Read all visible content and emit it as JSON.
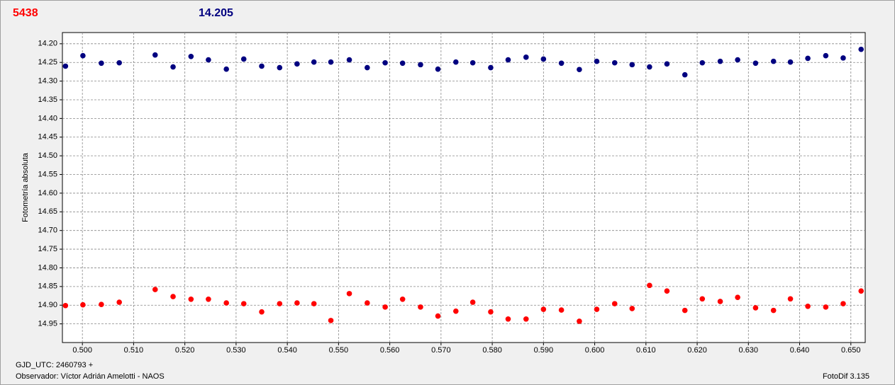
{
  "chart_data": {
    "type": "scatter",
    "annotations": [
      "5438",
      "14.205",
      "GJD_UTC: 2460793 +",
      "Observador: Víctor Adrián Amelotti - NAOS",
      "FotoDif 3.135"
    ],
    "ylabel": "Fotometría absoluta",
    "xlim": [
      0.4961,
      0.6528
    ],
    "ylim": [
      14.17,
      15.0
    ],
    "y_inverted": true,
    "grid": true,
    "xticks": [
      {
        "value": 0.5,
        "label": "0.500"
      },
      {
        "value": 0.51,
        "label": "0.510"
      },
      {
        "value": 0.52,
        "label": "0.520"
      },
      {
        "value": 0.53,
        "label": "0.530"
      },
      {
        "value": 0.54,
        "label": "0.540"
      },
      {
        "value": 0.55,
        "label": "0.550"
      },
      {
        "value": 0.56,
        "label": "0.560"
      },
      {
        "value": 0.57,
        "label": "0.570"
      },
      {
        "value": 0.58,
        "label": "0.580"
      },
      {
        "value": 0.59,
        "label": "0.590"
      },
      {
        "value": 0.6,
        "label": "0.600"
      },
      {
        "value": 0.61,
        "label": "0.610"
      },
      {
        "value": 0.62,
        "label": "0.620"
      },
      {
        "value": 0.63,
        "label": "0.630"
      },
      {
        "value": 0.64,
        "label": "0.640"
      },
      {
        "value": 0.65,
        "label": "0.650"
      }
    ],
    "yticks": [
      {
        "value": 14.2,
        "label": "14.20"
      },
      14.25,
      {
        "value": 14.3,
        "label": "14.30"
      },
      14.35,
      {
        "value": 14.4,
        "label": "14.40"
      },
      14.45,
      {
        "value": 14.5,
        "label": "14.50"
      },
      14.55,
      {
        "value": 14.6,
        "label": "14.60"
      },
      14.65,
      {
        "value": 14.7,
        "label": "14.70"
      },
      14.75,
      {
        "value": 14.8,
        "label": "14.80"
      },
      14.85,
      {
        "value": 14.9,
        "label": "14.90"
      },
      14.95
    ],
    "x": [
      0.4967,
      0.5001,
      0.5037,
      0.5072,
      0.5142,
      0.5177,
      0.5212,
      0.5246,
      0.5281,
      0.5315,
      0.535,
      0.5385,
      0.5419,
      0.5452,
      0.5485,
      0.5521,
      0.5556,
      0.5591,
      0.5625,
      0.566,
      0.5694,
      0.5729,
      0.5762,
      0.5797,
      0.5831,
      0.5866,
      0.59,
      0.5935,
      0.597,
      0.6004,
      0.6039,
      0.6073,
      0.6107,
      0.6141,
      0.6176,
      0.621,
      0.6245,
      0.6279,
      0.6314,
      0.6349,
      0.6382,
      0.6416,
      0.6451,
      0.6485,
      0.652
    ],
    "series": [
      {
        "color": "#000080",
        "values": [
          14.26,
          14.232,
          14.252,
          14.251,
          14.23,
          14.262,
          14.234,
          14.243,
          14.268,
          14.241,
          14.26,
          14.264,
          14.254,
          14.249,
          14.249,
          14.243,
          14.264,
          14.251,
          14.252,
          14.256,
          14.268,
          14.249,
          14.251,
          14.264,
          14.243,
          14.236,
          14.241,
          14.252,
          14.269,
          14.247,
          14.251,
          14.256,
          14.262,
          14.254,
          14.283,
          14.251,
          14.247,
          14.243,
          14.252,
          14.247,
          14.249,
          14.239,
          14.232,
          14.238,
          14.215
        ]
      },
      {
        "color": "#ff0000",
        "values": [
          14.901,
          14.899,
          14.898,
          14.892,
          14.858,
          14.877,
          14.884,
          14.884,
          14.894,
          14.896,
          14.918,
          14.896,
          14.894,
          14.896,
          14.941,
          14.869,
          14.894,
          14.905,
          14.884,
          14.905,
          14.929,
          14.916,
          14.892,
          14.918,
          14.937,
          14.937,
          14.911,
          14.913,
          14.943,
          14.911,
          14.896,
          14.909,
          14.847,
          14.862,
          14.914,
          14.883,
          14.89,
          14.879,
          14.907,
          14.914,
          14.883,
          14.903,
          14.905,
          14.896,
          14.862
        ]
      }
    ]
  }
}
